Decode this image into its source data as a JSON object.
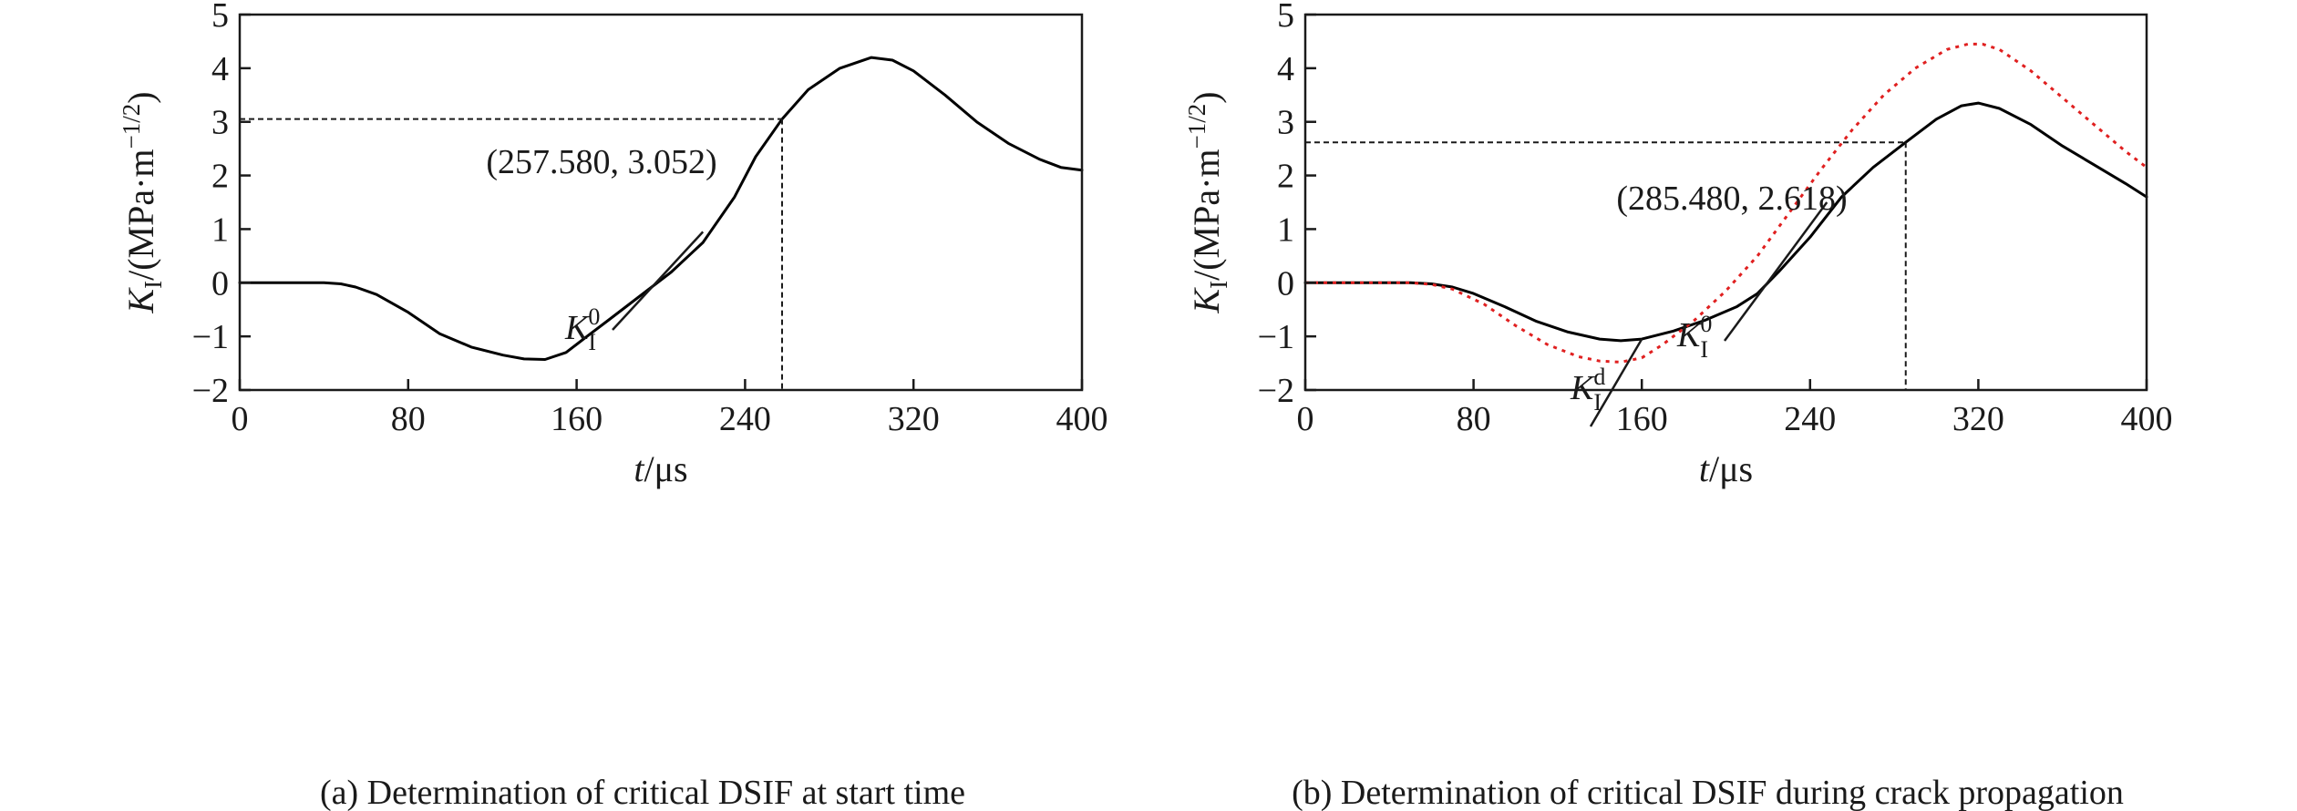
{
  "chart_data": [
    {
      "type": "line",
      "caption": "(a) Determination of critical DSIF at start time",
      "xlabel": {
        "italic": "t",
        "unit": "/μs"
      },
      "ylabel": {
        "italic": "K",
        "sub": "I",
        "unit": "/(MPa·m",
        "exp": "−1/2",
        "close": ")"
      },
      "xlim": [
        0,
        400
      ],
      "ylim": [
        -2,
        5
      ],
      "xticks": [
        0,
        80,
        160,
        240,
        320,
        400
      ],
      "xtick_labels": [
        "0",
        "80",
        "160",
        "240",
        "320",
        "400"
      ],
      "yticks": [
        -2,
        -1,
        0,
        1,
        2,
        3,
        4,
        5
      ],
      "ytick_labels": [
        "−2",
        "−1",
        "0",
        "1",
        "2",
        "3",
        "4",
        "5"
      ],
      "grid": false,
      "series": [
        {
          "name": "K_I^0",
          "color": "#000000",
          "style": "solid",
          "x": [
            0,
            20,
            40,
            48,
            55,
            65,
            80,
            95,
            110,
            125,
            135,
            145,
            155,
            165,
            175,
            190,
            205,
            220,
            235,
            245,
            257.58,
            270,
            285,
            300,
            310,
            320,
            335,
            350,
            365,
            380,
            390,
            400
          ],
          "y": [
            0,
            0,
            0,
            -0.02,
            -0.08,
            -0.22,
            -0.55,
            -0.95,
            -1.2,
            -1.35,
            -1.42,
            -1.43,
            -1.3,
            -1.0,
            -0.7,
            -0.25,
            0.2,
            0.75,
            1.6,
            2.35,
            3.052,
            3.6,
            4.0,
            4.2,
            4.15,
            3.95,
            3.5,
            3.0,
            2.6,
            2.3,
            2.15,
            2.1
          ]
        }
      ],
      "annotations": [
        {
          "text": "(257.580, 3.052)",
          "x": 257.58,
          "y": 3.052
        },
        {
          "label_main": "K",
          "label_sub": "I",
          "label_sup": "0",
          "points_to": {
            "x": 220,
            "y": 0.95
          }
        }
      ]
    },
    {
      "type": "line",
      "caption": "(b) Determination of critical DSIF during crack propagation",
      "xlabel": {
        "italic": "t",
        "unit": "/μs"
      },
      "ylabel": {
        "italic": "K",
        "sub": "I",
        "unit": "/(MPa·m",
        "exp": "−1/2",
        "close": ")"
      },
      "xlim": [
        0,
        400
      ],
      "ylim": [
        -2,
        5
      ],
      "xticks": [
        0,
        80,
        160,
        240,
        320,
        400
      ],
      "xtick_labels": [
        "0",
        "80",
        "160",
        "240",
        "320",
        "400"
      ],
      "yticks": [
        -2,
        -1,
        0,
        1,
        2,
        3,
        4,
        5
      ],
      "ytick_labels": [
        "−2",
        "−1",
        "0",
        "1",
        "2",
        "3",
        "4",
        "5"
      ],
      "grid": false,
      "series": [
        {
          "name": "K_I^d",
          "color": "#000000",
          "style": "solid",
          "x": [
            0,
            30,
            50,
            60,
            70,
            80,
            95,
            110,
            125,
            140,
            150,
            160,
            175,
            190,
            205,
            215,
            225,
            240,
            255,
            270,
            285.48,
            300,
            312,
            320,
            330,
            345,
            360,
            375,
            390,
            400
          ],
          "y": [
            0,
            0,
            0,
            -0.02,
            -0.08,
            -0.2,
            -0.45,
            -0.72,
            -0.92,
            -1.05,
            -1.08,
            -1.05,
            -0.9,
            -0.7,
            -0.45,
            -0.2,
            0.2,
            0.85,
            1.6,
            2.15,
            2.618,
            3.05,
            3.3,
            3.35,
            3.25,
            2.95,
            2.55,
            2.2,
            1.85,
            1.6
          ]
        },
        {
          "name": "K_I^0",
          "color": "#e02020",
          "style": "dotted",
          "x": [
            0,
            30,
            50,
            60,
            70,
            85,
            100,
            115,
            130,
            140,
            150,
            160,
            170,
            185,
            200,
            215,
            230,
            245,
            260,
            275,
            290,
            305,
            315,
            322,
            330,
            345,
            360,
            375,
            390,
            400
          ],
          "y": [
            0,
            0,
            0,
            -0.03,
            -0.12,
            -0.4,
            -0.8,
            -1.15,
            -1.38,
            -1.46,
            -1.48,
            -1.4,
            -1.15,
            -0.7,
            -0.15,
            0.5,
            1.3,
            2.1,
            2.85,
            3.5,
            4.0,
            4.35,
            4.45,
            4.45,
            4.35,
            3.95,
            3.45,
            2.95,
            2.45,
            2.15
          ]
        }
      ],
      "annotations": [
        {
          "text": "(285.480, 2.618)",
          "x": 285.48,
          "y": 2.618
        },
        {
          "label_main": "K",
          "label_sub": "I",
          "label_sup": "0",
          "points_to": {
            "x": 248,
            "y": 1.5
          }
        },
        {
          "label_main": "K",
          "label_sub": "I",
          "label_sup": "d",
          "points_to": {
            "x": 160,
            "y": -1.05
          }
        }
      ]
    }
  ]
}
